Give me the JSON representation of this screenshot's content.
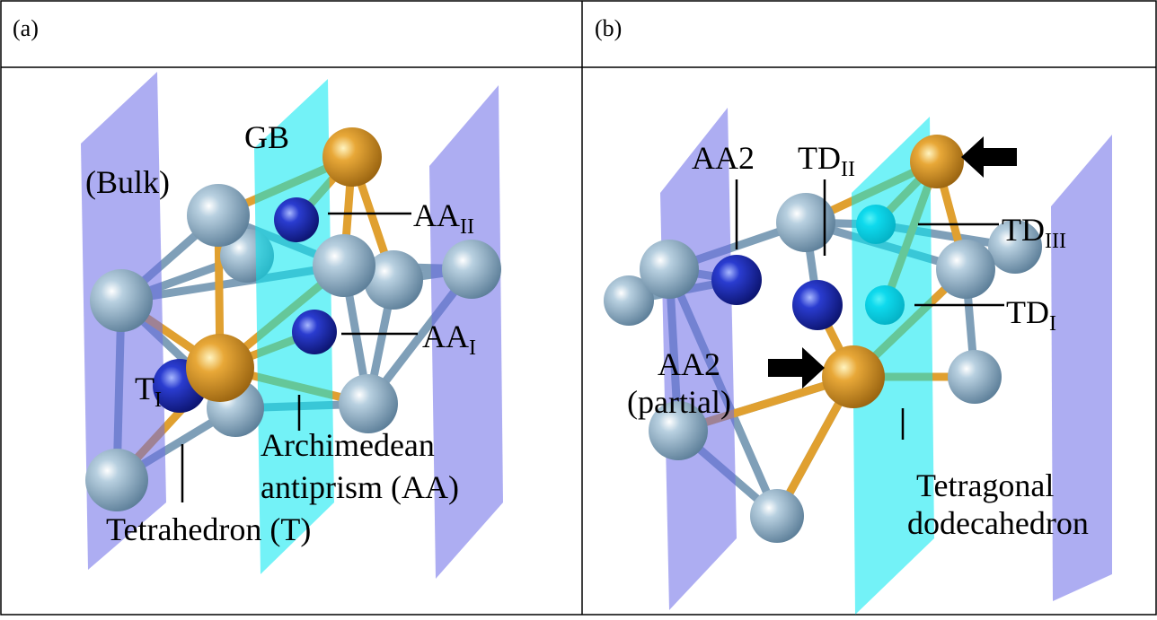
{
  "panels": [
    {
      "label": "(a)",
      "annotations": [
        {
          "text": "GB"
        },
        {
          "text": "(Bulk)"
        },
        {
          "base": "AA",
          "sub": "II"
        },
        {
          "base": "AA",
          "sub": "I"
        },
        {
          "base": "T",
          "sub": "I"
        },
        {
          "text": "Archimedean"
        },
        {
          "text": "antiprism (AA)"
        },
        {
          "text": "Tetrahedron (T)"
        }
      ]
    },
    {
      "label": "(b)",
      "annotations": [
        {
          "text": "AA2"
        },
        {
          "base": "TD",
          "sub": "II"
        },
        {
          "base": "TD",
          "sub": "III"
        },
        {
          "base": "TD",
          "sub": "I"
        },
        {
          "text": "AA2"
        },
        {
          "text": "(partial)"
        },
        {
          "text": "Tetragonal"
        },
        {
          "text": "dodecahedron"
        }
      ]
    }
  ]
}
